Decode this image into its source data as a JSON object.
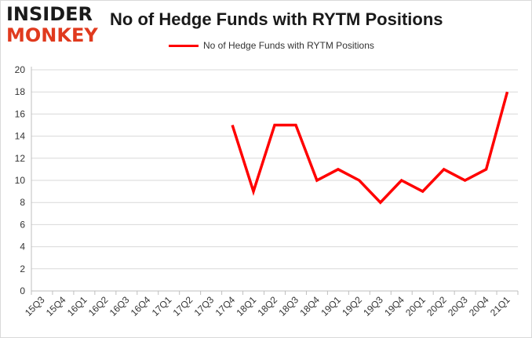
{
  "logo": {
    "top": "INSIDER",
    "bottom": "MONKEY"
  },
  "colors": {
    "series": "#ff0000",
    "grid": "#d9d9d9",
    "axis": "#bfbfbf",
    "logo_accent": "#e03a1e"
  },
  "chart_data": {
    "type": "line",
    "title": "No of Hedge Funds with RYTM Positions",
    "xlabel": "",
    "ylabel": "",
    "legend": "top-center",
    "grid": true,
    "ylim": [
      0,
      20
    ],
    "yticks": [
      0,
      2,
      4,
      6,
      8,
      10,
      12,
      14,
      16,
      18,
      20
    ],
    "categories": [
      "15Q3",
      "15Q4",
      "16Q1",
      "16Q2",
      "16Q3",
      "16Q4",
      "17Q1",
      "17Q2",
      "17Q3",
      "17Q4",
      "18Q1",
      "18Q2",
      "18Q3",
      "18Q4",
      "19Q1",
      "19Q2",
      "19Q3",
      "19Q4",
      "20Q1",
      "20Q2",
      "20Q3",
      "20Q4",
      "21Q1"
    ],
    "series": [
      {
        "name": "No of Hedge Funds with RYTM Positions",
        "values": [
          null,
          null,
          null,
          null,
          null,
          null,
          null,
          null,
          null,
          15,
          9,
          15,
          15,
          10,
          11,
          10,
          8,
          10,
          9,
          11,
          10,
          11,
          18
        ]
      }
    ]
  }
}
